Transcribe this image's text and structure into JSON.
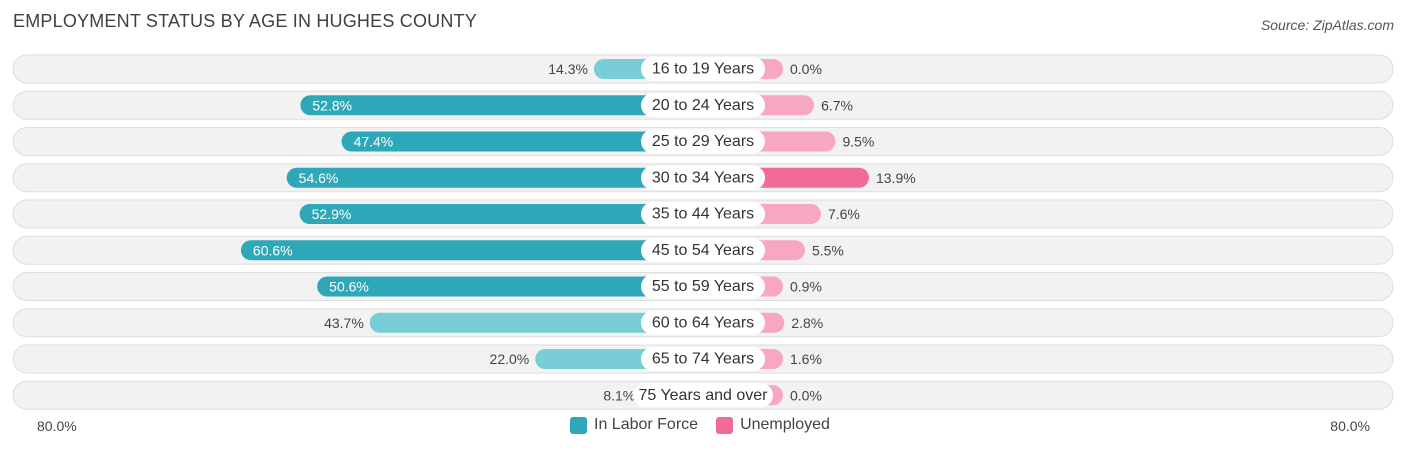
{
  "header": {
    "title": "EMPLOYMENT STATUS BY AGE IN HUGHES COUNTY",
    "source": "Source: ZipAtlas.com"
  },
  "colors": {
    "labor_force_strong": "#2ea8b8",
    "labor_force_light": "#79cdd6",
    "unemployed_strong": "#f06b96",
    "unemployed_light": "#f7a7c1",
    "row_bg": "#f2f2f2",
    "row_border": "#dedede"
  },
  "axis": {
    "left_label": "80.0%",
    "right_label": "80.0%"
  },
  "legend": {
    "labor_force": "In Labor Force",
    "unemployed": "Unemployed"
  },
  "chart_data": {
    "type": "bar",
    "orientation": "horizontal-diverging",
    "title": "EMPLOYMENT STATUS BY AGE IN HUGHES COUNTY",
    "categories": [
      "16 to 19 Years",
      "20 to 24 Years",
      "25 to 29 Years",
      "30 to 34 Years",
      "35 to 44 Years",
      "45 to 54 Years",
      "55 to 59 Years",
      "60 to 64 Years",
      "65 to 74 Years",
      "75 Years and over"
    ],
    "series": [
      {
        "name": "In Labor Force",
        "side": "left",
        "values": [
          14.3,
          52.8,
          47.4,
          54.6,
          52.9,
          60.6,
          50.6,
          43.7,
          22.0,
          8.1
        ],
        "labels": [
          "14.3%",
          "52.8%",
          "47.4%",
          "54.6%",
          "52.9%",
          "60.6%",
          "50.6%",
          "43.7%",
          "22.0%",
          "8.1%"
        ]
      },
      {
        "name": "Unemployed",
        "side": "right",
        "values": [
          0.0,
          6.7,
          9.5,
          13.9,
          7.6,
          5.5,
          0.9,
          2.8,
          1.6,
          0.0
        ],
        "labels": [
          "0.0%",
          "6.7%",
          "9.5%",
          "13.9%",
          "7.6%",
          "5.5%",
          "0.9%",
          "2.8%",
          "1.6%",
          "0.0%"
        ]
      }
    ],
    "xlim": [
      -80,
      80
    ],
    "legend_position": "bottom-center"
  }
}
